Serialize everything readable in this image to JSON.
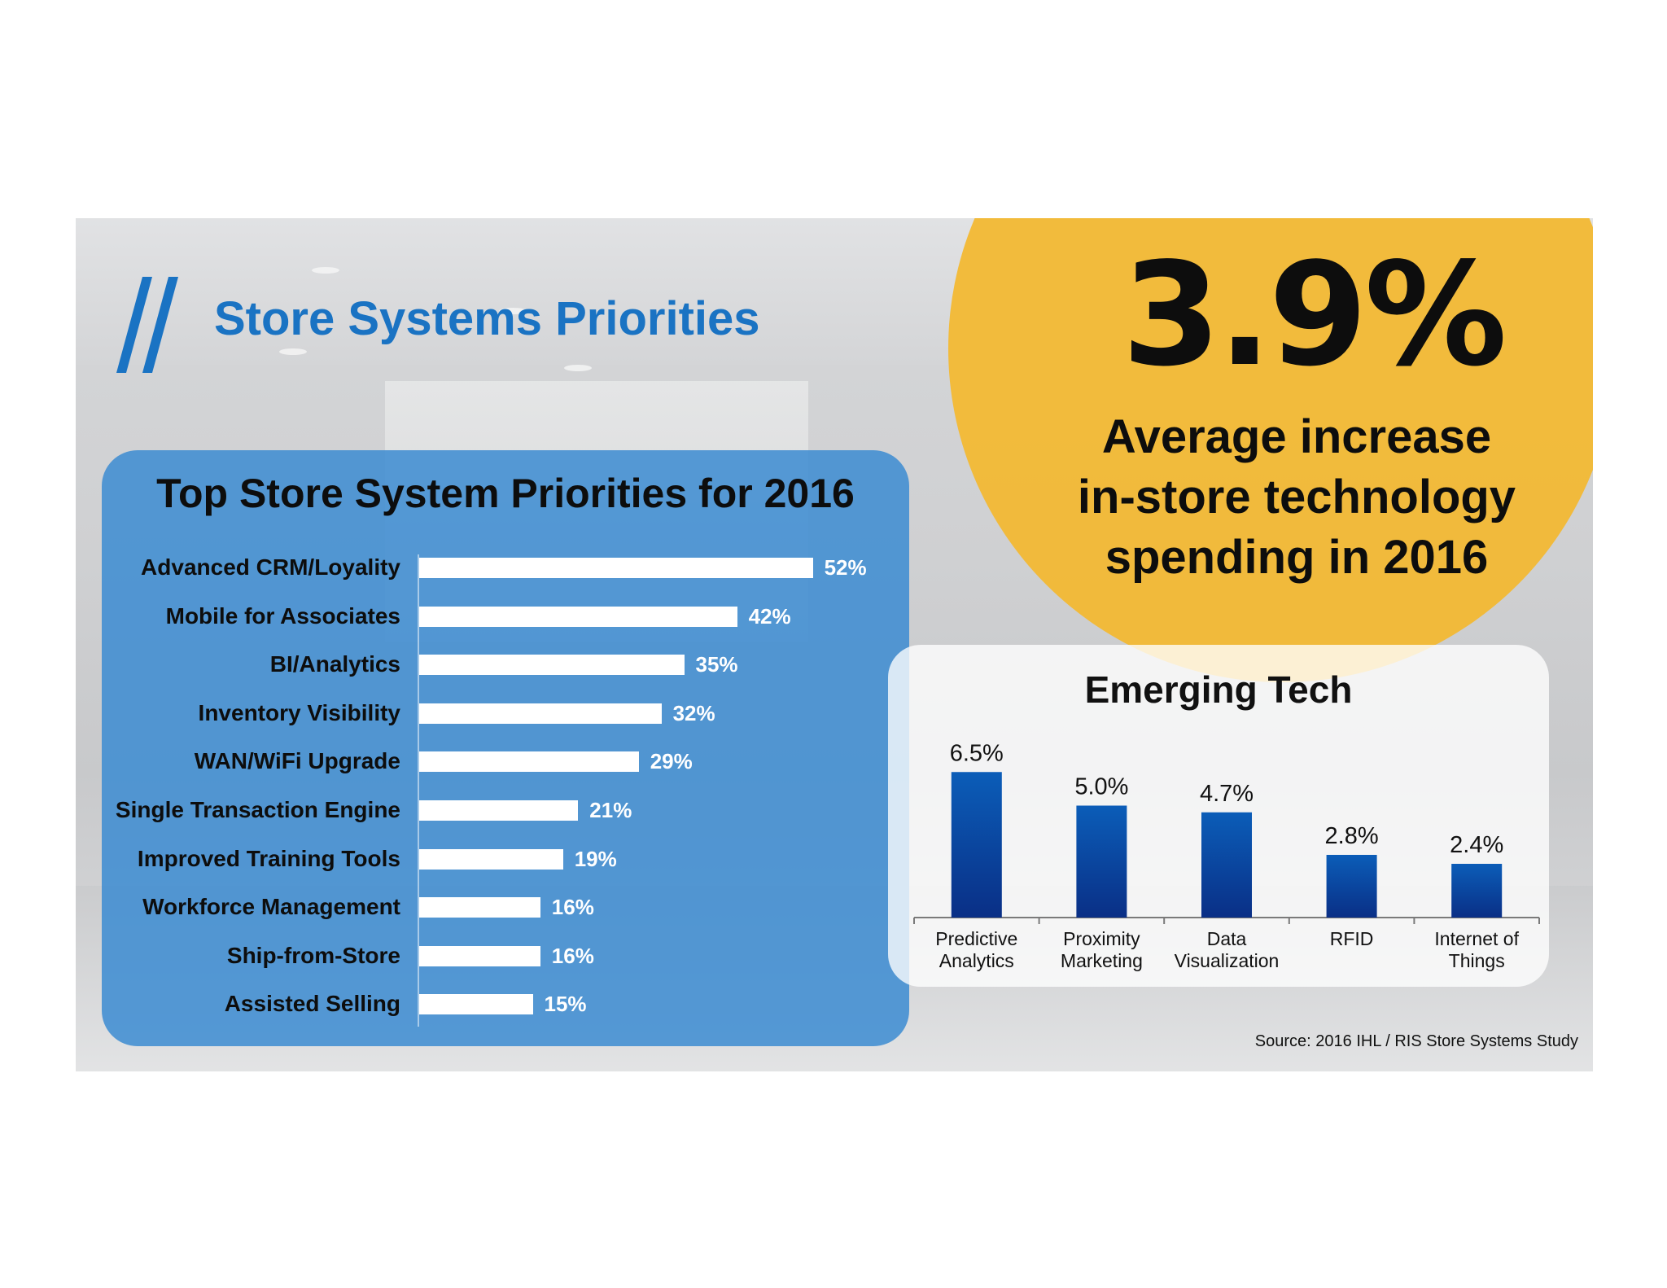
{
  "header": {
    "title": "Store Systems Priorities"
  },
  "highlight": {
    "stat": "3.9%",
    "caption_lines": [
      "Average increase",
      "in-store technology",
      "spending in 2016"
    ]
  },
  "priorities": {
    "title": "Top Store System Priorities for 2016"
  },
  "emerging": {
    "title": "Emerging Tech"
  },
  "footer": {
    "source": "Source: 2016 IHL / RIS Store Systems Study"
  },
  "colors": {
    "title_blue": "#1a73c3",
    "panel_blue": "#3c8cd2",
    "accent_yellow": "#f2b935",
    "bar_white": "#ffffff",
    "bar_navy_top": "#0b5db8",
    "bar_navy_bottom": "#0a2f86"
  },
  "icons": [
    "double-slash-logo-icon"
  ],
  "chart_data": [
    {
      "type": "bar",
      "orientation": "horizontal",
      "title": "Top Store System Priorities for 2016",
      "categories": [
        "Advanced CRM/Loyality",
        "Mobile for Associates",
        "BI/Analytics",
        "Inventory Visibility",
        "WAN/WiFi Upgrade",
        "Single Transaction Engine",
        "Improved Training Tools",
        "Workforce Management",
        "Ship-from-Store",
        "Assisted Selling"
      ],
      "values": [
        52,
        42,
        35,
        32,
        29,
        21,
        19,
        16,
        16,
        15
      ],
      "value_labels": [
        "52%",
        "42%",
        "35%",
        "32%",
        "29%",
        "21%",
        "19%",
        "16%",
        "16%",
        "15%"
      ],
      "xlim": [
        0,
        55
      ],
      "grid": false,
      "legend": "none"
    },
    {
      "type": "bar",
      "orientation": "vertical",
      "title": "Emerging Tech",
      "categories": [
        [
          "Predictive",
          "Analytics"
        ],
        [
          "Proximity",
          "Marketing"
        ],
        [
          "Data",
          "Visualization"
        ],
        [
          "RFID"
        ],
        [
          "Internet of",
          "Things"
        ]
      ],
      "values": [
        6.5,
        5.0,
        4.7,
        2.8,
        2.4
      ],
      "value_labels": [
        "6.5%",
        "5.0%",
        "4.7%",
        "2.8%",
        "2.4%"
      ],
      "ylim": [
        0,
        7
      ],
      "grid": false,
      "legend": "none"
    }
  ]
}
